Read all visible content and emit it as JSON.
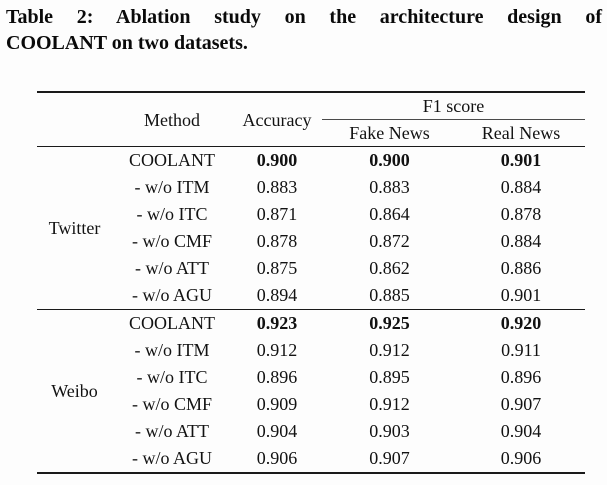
{
  "caption": {
    "line1": "Table 2: Ablation study on the architecture design of",
    "line2": "COOLANT on two datasets."
  },
  "table": {
    "headers": {
      "method": "Method",
      "accuracy": "Accuracy",
      "f1_group": "F1 score",
      "fake": "Fake News",
      "real": "Real News"
    },
    "groups": [
      {
        "dataset": "Twitter",
        "rows": [
          {
            "method": "COOLANT",
            "accuracy": "0.900",
            "fake": "0.900",
            "real": "0.901",
            "bold": true
          },
          {
            "method": "- w/o ITM",
            "accuracy": "0.883",
            "fake": "0.883",
            "real": "0.884",
            "bold": false
          },
          {
            "method": "- w/o ITC",
            "accuracy": "0.871",
            "fake": "0.864",
            "real": "0.878",
            "bold": false
          },
          {
            "method": "- w/o CMF",
            "accuracy": "0.878",
            "fake": "0.872",
            "real": "0.884",
            "bold": false
          },
          {
            "method": "- w/o ATT",
            "accuracy": "0.875",
            "fake": "0.862",
            "real": "0.886",
            "bold": false
          },
          {
            "method": "- w/o AGU",
            "accuracy": "0.894",
            "fake": "0.885",
            "real": "0.901",
            "bold": false
          }
        ]
      },
      {
        "dataset": "Weibo",
        "rows": [
          {
            "method": "COOLANT",
            "accuracy": "0.923",
            "fake": "0.925",
            "real": "0.920",
            "bold": true
          },
          {
            "method": "- w/o ITM",
            "accuracy": "0.912",
            "fake": "0.912",
            "real": "0.911",
            "bold": false
          },
          {
            "method": "- w/o ITC",
            "accuracy": "0.896",
            "fake": "0.895",
            "real": "0.896",
            "bold": false
          },
          {
            "method": "- w/o CMF",
            "accuracy": "0.909",
            "fake": "0.912",
            "real": "0.907",
            "bold": false
          },
          {
            "method": "- w/o ATT",
            "accuracy": "0.904",
            "fake": "0.903",
            "real": "0.904",
            "bold": false
          },
          {
            "method": "- w/o AGU",
            "accuracy": "0.906",
            "fake": "0.907",
            "real": "0.906",
            "bold": false
          }
        ]
      }
    ],
    "text_color": "#121212",
    "rule_color": "#1a1a1a"
  }
}
